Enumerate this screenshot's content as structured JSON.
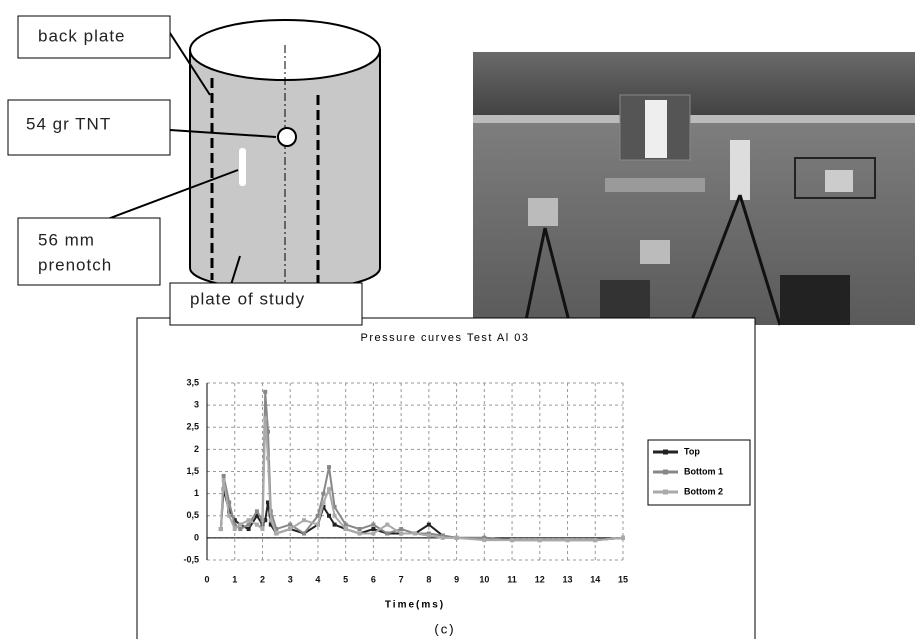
{
  "diagram": {
    "back_plate": "back plate",
    "tnt": "54 gr TNT",
    "prenotch": [
      "56 mm",
      "prenotch"
    ],
    "plate_of_study": "plate of study"
  },
  "caption": "(c)",
  "chart_data": {
    "type": "line",
    "title": "Pressure curves Test Al 03",
    "x_label": "Time(ms)",
    "x": [
      0.5,
      0.6,
      0.8,
      1.0,
      1.2,
      1.5,
      1.8,
      2.0,
      2.1,
      2.2,
      2.3,
      2.5,
      3.0,
      3.5,
      4.0,
      4.2,
      4.4,
      4.6,
      5.0,
      5.5,
      6.0,
      6.5,
      7.0,
      7.5,
      8.0,
      8.5,
      9,
      10,
      11,
      12,
      13,
      14,
      15
    ],
    "series": [
      {
        "name": "Top",
        "color": "#222222",
        "values": [
          0.2,
          1.1,
          0.6,
          0.4,
          0.3,
          0.2,
          0.5,
          0.3,
          0.4,
          0.8,
          0.3,
          0.1,
          0.2,
          0.1,
          0.3,
          0.7,
          0.5,
          0.3,
          0.2,
          0.1,
          0.2,
          0.1,
          0.1,
          0.1,
          0.3,
          0.05,
          0,
          0,
          -0.05,
          -0.05,
          -0.05,
          -0.05,
          0
        ]
      },
      {
        "name": "Bottom 1",
        "color": "#888888",
        "values": [
          0.2,
          1.4,
          0.8,
          0.3,
          0.2,
          0.3,
          0.6,
          0.4,
          3.3,
          2.4,
          0.6,
          0.2,
          0.3,
          0.1,
          0.5,
          1.0,
          1.6,
          0.7,
          0.3,
          0.2,
          0.3,
          0.1,
          0.2,
          0.1,
          0.1,
          0.05,
          0,
          0,
          -0.05,
          -0.05,
          -0.05,
          -0.05,
          0
        ]
      },
      {
        "name": "Bottom 2",
        "color": "#aaaaaa",
        "values": [
          0.2,
          1.3,
          0.5,
          0.2,
          0.3,
          0.4,
          0.3,
          0.2,
          2.7,
          1.8,
          0.4,
          0.1,
          0.2,
          0.4,
          0.3,
          0.8,
          1.1,
          0.5,
          0.2,
          0.1,
          0.1,
          0.3,
          0.1,
          0.1,
          0.05,
          0,
          0,
          -0.05,
          -0.05,
          -0.05,
          -0.05,
          -0.05,
          0
        ]
      }
    ],
    "xlim": [
      0,
      15
    ],
    "xticks": [
      0,
      1,
      2,
      3,
      4,
      5,
      6,
      7,
      8,
      9,
      10,
      11,
      12,
      13,
      14,
      15
    ],
    "ylim": [
      -0.5,
      3.5
    ],
    "yticks": [
      {
        "value": -0.5,
        "label": "-0,5"
      },
      0,
      {
        "value": 0.5,
        "label": "0,5"
      },
      1,
      {
        "value": 1.5,
        "label": "1,5"
      },
      2,
      {
        "value": 2.5,
        "label": "2,5"
      },
      3,
      {
        "value": 3.5,
        "label": "3,5"
      }
    ],
    "grid": true,
    "legend": "right"
  }
}
